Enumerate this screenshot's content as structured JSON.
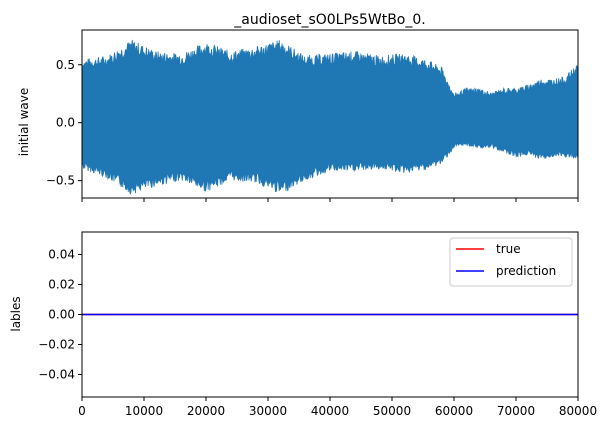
{
  "chart_data": [
    {
      "type": "line",
      "title": "_audioset_sO0LPs5WtBo_0.",
      "ylabel": "initial wave",
      "xlabel": "",
      "xlim": [
        0,
        80000
      ],
      "ylim": [
        -0.65,
        0.8
      ],
      "yticks": [
        {
          "value": 0.5,
          "label": "0.5"
        },
        {
          "value": 0.0,
          "label": "0.0"
        },
        {
          "value": -0.5,
          "label": "−0.5"
        }
      ],
      "show_xtick_labels": false,
      "grid": false,
      "series": [
        {
          "color": "#1f77b4",
          "envelope_x": [
            0,
            4000,
            8000,
            12000,
            16000,
            20000,
            24000,
            28000,
            32000,
            36000,
            40000,
            44000,
            48000,
            52000,
            56000,
            58000,
            60000,
            62000,
            64000,
            66000,
            68000,
            70000,
            72000,
            74000,
            76000,
            78000,
            80000
          ],
          "envelope_upper": [
            0.55,
            0.58,
            0.72,
            0.62,
            0.6,
            0.7,
            0.62,
            0.66,
            0.72,
            0.58,
            0.6,
            0.62,
            0.58,
            0.6,
            0.54,
            0.48,
            0.25,
            0.3,
            0.3,
            0.26,
            0.3,
            0.3,
            0.33,
            0.38,
            0.38,
            0.4,
            0.52
          ],
          "envelope_lower": [
            -0.4,
            -0.48,
            -0.62,
            -0.55,
            -0.5,
            -0.6,
            -0.5,
            -0.52,
            -0.62,
            -0.5,
            -0.42,
            -0.42,
            -0.4,
            -0.44,
            -0.4,
            -0.36,
            -0.22,
            -0.2,
            -0.22,
            -0.22,
            -0.25,
            -0.3,
            -0.28,
            -0.32,
            -0.3,
            -0.3,
            -0.33
          ]
        }
      ]
    },
    {
      "type": "line",
      "title": "",
      "ylabel": "lables",
      "xlabel": "",
      "xlim": [
        0,
        80000
      ],
      "ylim": [
        -0.055,
        0.055
      ],
      "xticks": [
        {
          "value": 0,
          "label": "0"
        },
        {
          "value": 10000,
          "label": "10000"
        },
        {
          "value": 20000,
          "label": "20000"
        },
        {
          "value": 30000,
          "label": "30000"
        },
        {
          "value": 40000,
          "label": "40000"
        },
        {
          "value": 50000,
          "label": "50000"
        },
        {
          "value": 60000,
          "label": "60000"
        },
        {
          "value": 70000,
          "label": "70000"
        },
        {
          "value": 80000,
          "label": "80000"
        }
      ],
      "yticks": [
        {
          "value": 0.04,
          "label": "0.04"
        },
        {
          "value": 0.02,
          "label": "0.02"
        },
        {
          "value": 0.0,
          "label": "0.00"
        },
        {
          "value": -0.02,
          "label": "−0.02"
        },
        {
          "value": -0.04,
          "label": "−0.04"
        }
      ],
      "legend_position": "top-right",
      "grid": false,
      "series": [
        {
          "name": "true",
          "color": "#ff0000",
          "x": [
            0,
            80000
          ],
          "y": [
            0,
            0
          ]
        },
        {
          "name": "prediction",
          "color": "#0000ff",
          "x": [
            0,
            80000
          ],
          "y": [
            0,
            0
          ]
        }
      ]
    }
  ]
}
